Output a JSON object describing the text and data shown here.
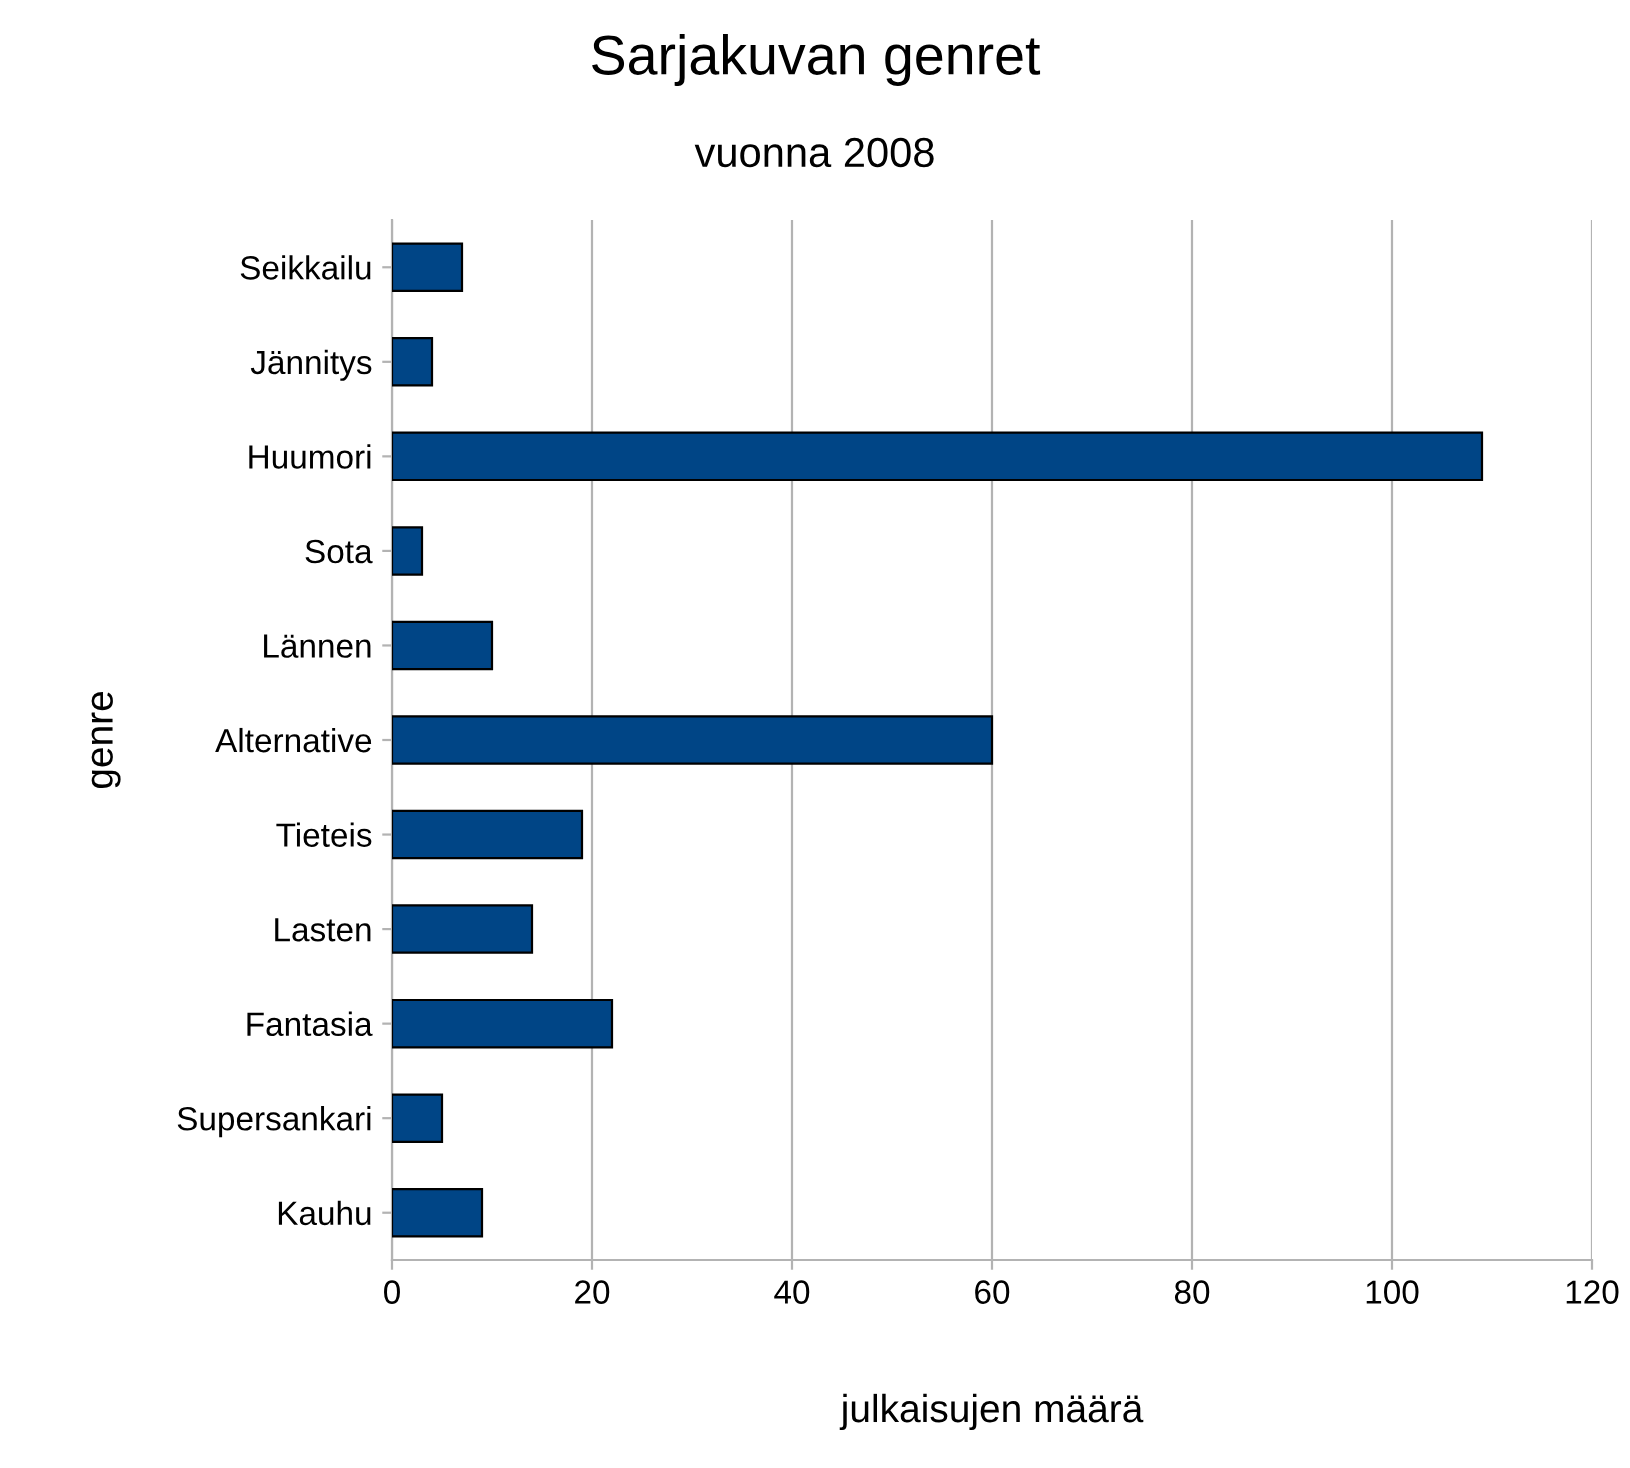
{
  "chart_data": {
    "type": "bar",
    "orientation": "horizontal",
    "title": "Sarjakuvan genret",
    "subtitle": "vuonna 2008",
    "xlabel": "julkaisujen määrä",
    "ylabel": "genre",
    "categories": [
      "Seikkailu",
      "Jännitys",
      "Huumori",
      "Sota",
      "Lännen",
      "Alternative",
      "Tieteis",
      "Lasten",
      "Fantasia",
      "Supersankari",
      "Kauhu"
    ],
    "values": [
      7,
      4,
      109,
      3,
      10,
      60,
      19,
      14,
      22,
      5,
      9
    ],
    "color": "#004586",
    "xlim": [
      0,
      120
    ],
    "xticks": [
      0,
      20,
      40,
      60,
      80,
      100,
      120
    ],
    "grid": "x"
  }
}
